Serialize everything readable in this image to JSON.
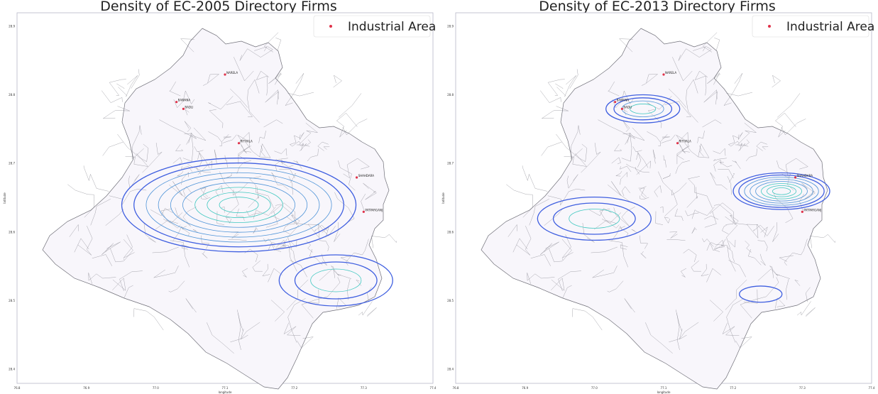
{
  "colors": {
    "industrial_marker": "#e0324a",
    "ward_fill": "#f8f6fb",
    "ward_stroke": "#6f6f78",
    "contour_outer": "#3f5fe0",
    "contour_mid": "#4f94d8",
    "contour_inner": "#40c8c0"
  },
  "chart_data": [
    {
      "type": "map-density",
      "title": "Density of EC-2005 Directory Firms",
      "legend": {
        "label": "Industrial Area",
        "placement": "top-right",
        "marker": "dot"
      },
      "xlabel": "longitude",
      "ylabel": "latitude",
      "x_ticks": [
        "76.8",
        "76.9",
        "77.0",
        "77.1",
        "77.2",
        "77.3",
        "77.4"
      ],
      "y_ticks": [
        "28.9",
        "28.8",
        "28.7",
        "28.6",
        "28.5",
        "28.4"
      ],
      "industrial_areas": [
        {
          "name": "NARELA",
          "lon": 77.1,
          "lat": 28.83
        },
        {
          "name": "BAWANA",
          "lon": 77.03,
          "lat": 28.79
        },
        {
          "name": "BADLI",
          "lon": 77.04,
          "lat": 28.78
        },
        {
          "name": "RITHALA",
          "lon": 77.12,
          "lat": 28.73
        },
        {
          "name": "SHAHDARA",
          "lon": 77.29,
          "lat": 28.68
        },
        {
          "name": "PATPARGANJ",
          "lon": 77.3,
          "lat": 28.63
        }
      ],
      "density_hotspots": [
        {
          "lon": 77.12,
          "lat": 28.64,
          "levels": 9
        },
        {
          "lon": 77.26,
          "lat": 28.53,
          "levels": 3
        }
      ]
    },
    {
      "type": "map-density",
      "title": "Density of EC-2013 Directory Firms",
      "legend": {
        "label": "Industrial Area",
        "placement": "top-right",
        "marker": "dot"
      },
      "xlabel": "longitude",
      "ylabel": "latitude",
      "x_ticks": [
        "76.8",
        "76.9",
        "77.0",
        "77.1",
        "77.2",
        "77.3",
        "77.4"
      ],
      "y_ticks": [
        "28.9",
        "28.8",
        "28.7",
        "28.6",
        "28.5",
        "28.4"
      ],
      "industrial_areas": [
        {
          "name": "NARELA",
          "lon": 77.1,
          "lat": 28.83
        },
        {
          "name": "BAWANA",
          "lon": 77.03,
          "lat": 28.79
        },
        {
          "name": "BADLI",
          "lon": 77.04,
          "lat": 28.78
        },
        {
          "name": "RITHALA",
          "lon": 77.12,
          "lat": 28.73
        },
        {
          "name": "SHAHDARA",
          "lon": 77.29,
          "lat": 28.68
        },
        {
          "name": "PATPARGANJ",
          "lon": 77.3,
          "lat": 28.63
        }
      ],
      "density_hotspots": [
        {
          "lon": 77.07,
          "lat": 28.78,
          "levels": 4
        },
        {
          "lon": 77.0,
          "lat": 28.62,
          "levels": 3
        },
        {
          "lon": 77.27,
          "lat": 28.66,
          "levels": 8
        },
        {
          "lon": 77.24,
          "lat": 28.51,
          "levels": 1
        }
      ]
    }
  ]
}
